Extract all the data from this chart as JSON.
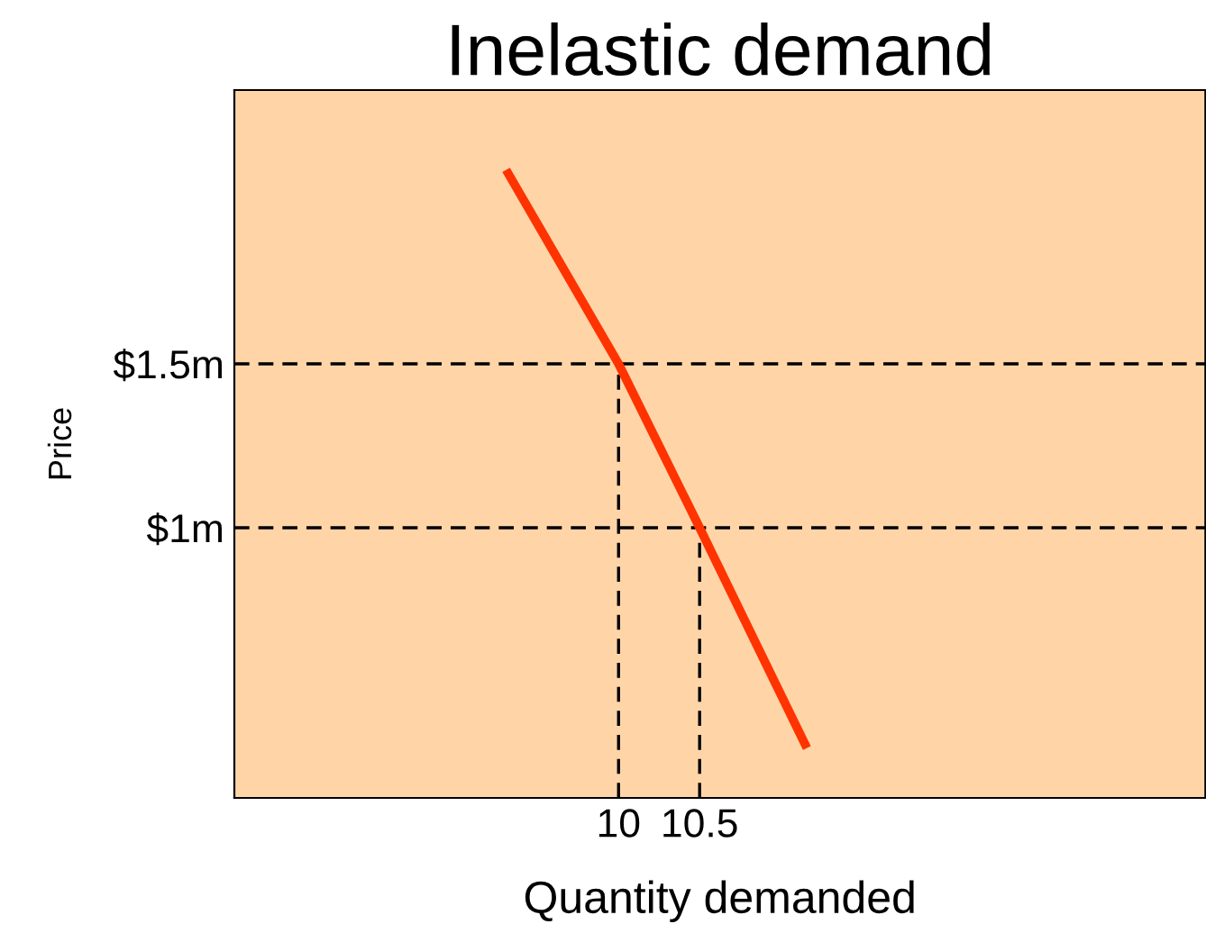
{
  "chart_data": {
    "type": "line",
    "title": "Inelastic demand",
    "xlabel": "Quantity demanded",
    "ylabel": "Price",
    "xlim": [
      7.63,
      13.62
    ],
    "ylim": [
      0.176,
      2.335
    ],
    "xticks": [
      10,
      10.5
    ],
    "yticks": [
      {
        "value": 1,
        "label": "$1m"
      },
      {
        "value": 1.5,
        "label": "$1.5m"
      }
    ],
    "series": [
      {
        "color": "#ff3300",
        "x": [
          9.32,
          10,
          10.5,
          11.15
        ],
        "values": [
          2.08,
          1.5,
          1.0,
          0.34
        ],
        "line_style": "solid"
      },
      {
        "color": "#000000",
        "x": [
          10,
          10
        ],
        "values": [
          0.176,
          1.5
        ],
        "line_style": "dashed"
      },
      {
        "color": "#000000",
        "x": [
          10.5,
          10.5
        ],
        "values": [
          0.176,
          1.0
        ],
        "line_style": "dashed"
      }
    ],
    "ref_lines": [
      {
        "axis": "y",
        "value": 1.5,
        "color": "#000000",
        "line_style": "dashed"
      },
      {
        "axis": "y",
        "value": 1,
        "color": "#000000",
        "line_style": "dashed"
      }
    ],
    "grid": false,
    "legend": false,
    "marker": "none"
  }
}
